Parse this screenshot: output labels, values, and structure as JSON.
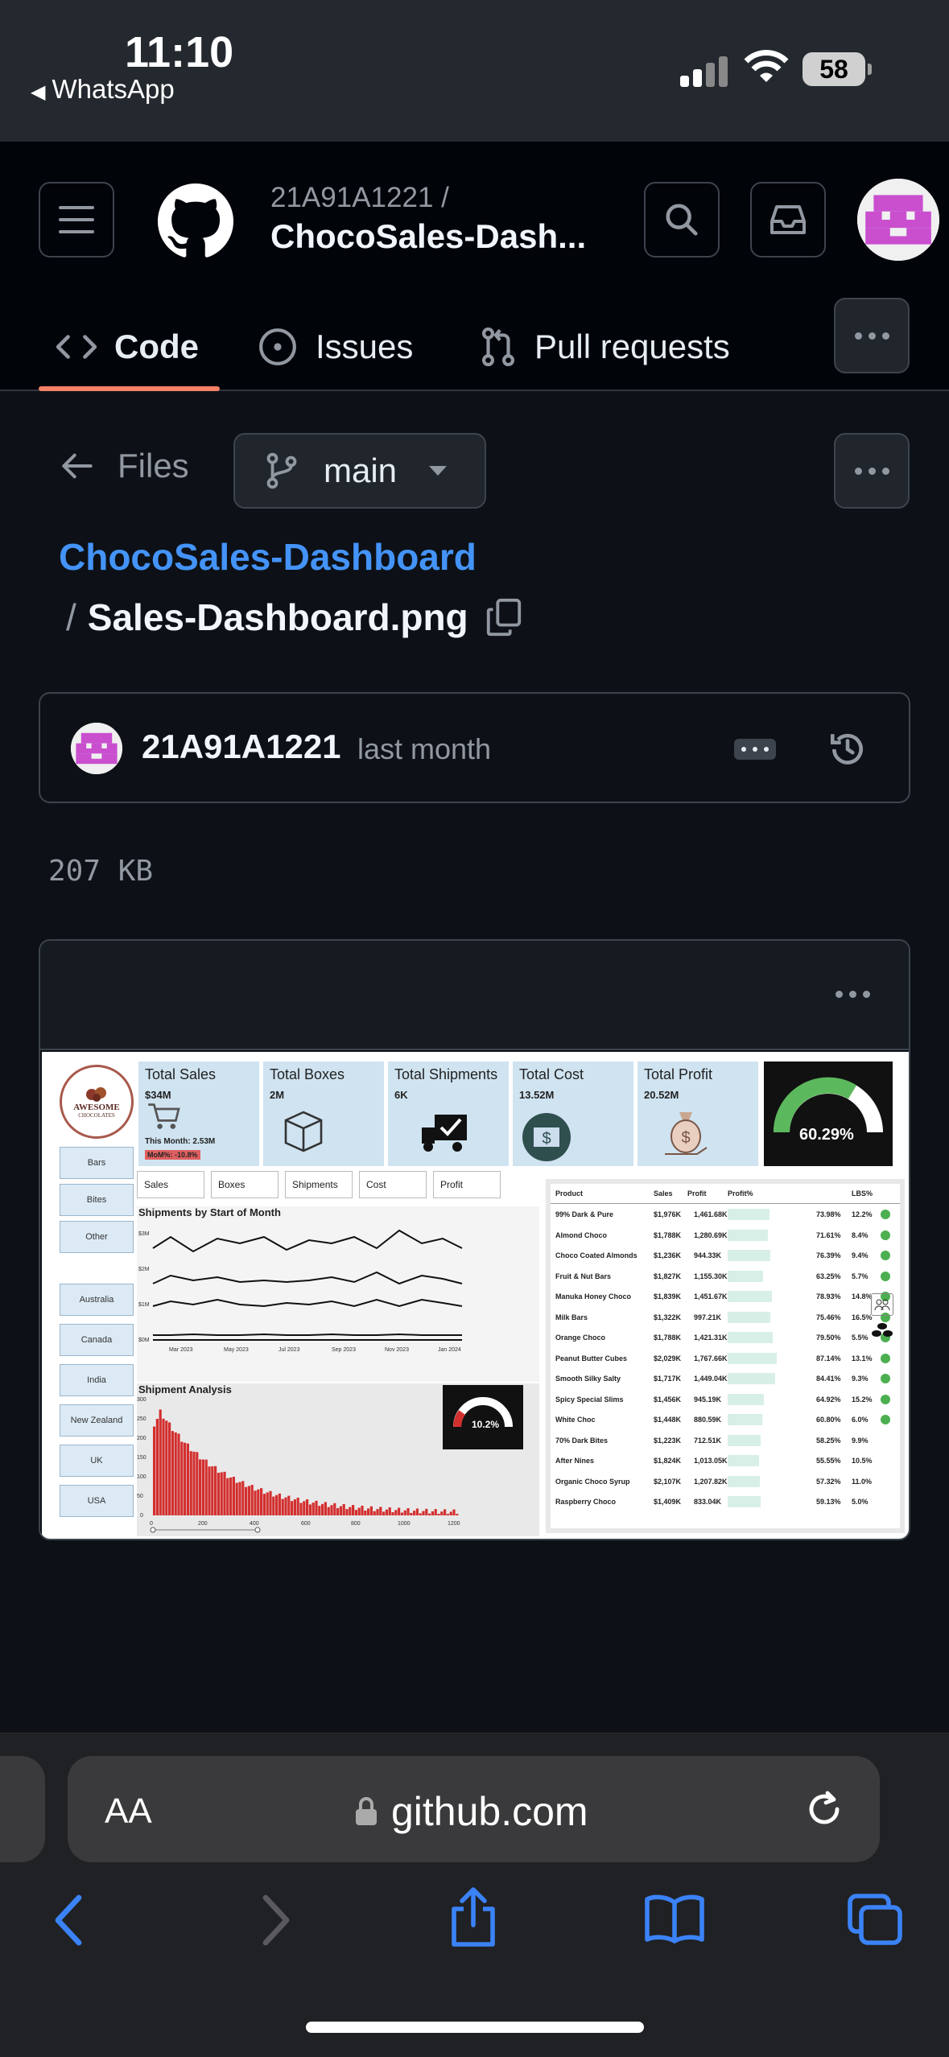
{
  "status": {
    "time": "11:10",
    "back_app": "WhatsApp",
    "battery": "58"
  },
  "header": {
    "owner": "21A91A1221 /",
    "repo": "ChocoSales-Dash..."
  },
  "tabs": [
    {
      "label": "Code",
      "active": true
    },
    {
      "label": "Issues",
      "active": false
    },
    {
      "label": "Pull requests",
      "active": false
    }
  ],
  "toolbar": {
    "files_label": "Files",
    "branch": "main"
  },
  "breadcrumb": {
    "repo": "ChocoSales-Dashboard",
    "separator": "/",
    "file": "Sales-Dashboard.png"
  },
  "commit": {
    "user": "21A91A1221",
    "time": "last month"
  },
  "file_size": "207 KB",
  "dashboard": {
    "logo_line1": "AWESOME",
    "logo_line2": "CHOCOLATES",
    "filters": [
      "Bars",
      "Bites",
      "Other",
      "Australia",
      "Canada",
      "India",
      "New Zealand",
      "UK",
      "USA"
    ],
    "kpis": [
      {
        "label": "Total Sales",
        "value": "$34M",
        "extra1": "This Month: 2.53M",
        "extra2": "MoM%: -10.8%"
      },
      {
        "label": "Total Boxes",
        "value": "2M"
      },
      {
        "label": "Total Shipments",
        "value": "6K"
      },
      {
        "label": "Total Cost",
        "value": "13.52M"
      },
      {
        "label": "Total Profit",
        "value": "20.52M"
      }
    ],
    "gauge_value": "60.29%",
    "chart_tabs": [
      "Sales",
      "Boxes",
      "Shipments",
      "Cost",
      "Profit"
    ],
    "line_chart_title": "Shipments by Start of Month",
    "line_y_ticks": [
      "$3M",
      "$2M",
      "$1M",
      "$0M"
    ],
    "line_x_ticks": [
      "Mar 2023",
      "May 2023",
      "Jul 2023",
      "Sep 2023",
      "Nov 2023",
      "Jan 2024"
    ],
    "bar_chart_title": "Shipment Analysis",
    "bar_y_ticks": [
      "300",
      "250",
      "200",
      "150",
      "100",
      "50",
      "0"
    ],
    "bar_x_ticks": [
      "0",
      "200",
      "400",
      "600",
      "800",
      "1000",
      "1200"
    ],
    "small_gauge_value": "10.2%",
    "table_headers": [
      "Product",
      "Sales",
      "Profit",
      "Profit%",
      "LBS%"
    ],
    "table_rows": [
      {
        "product": "99% Dark & Pure",
        "sales": "$1,976K",
        "profit": "1,461.68K",
        "pct": "73.98%",
        "lbs": "12.2%",
        "check": true
      },
      {
        "product": "Almond Choco",
        "sales": "$1,788K",
        "profit": "1,280.69K",
        "pct": "71.61%",
        "lbs": "8.4%",
        "check": true
      },
      {
        "product": "Choco Coated Almonds",
        "sales": "$1,236K",
        "profit": "944.33K",
        "pct": "76.39%",
        "lbs": "9.4%",
        "check": true
      },
      {
        "product": "Fruit & Nut Bars",
        "sales": "$1,827K",
        "profit": "1,155.30K",
        "pct": "63.25%",
        "lbs": "5.7%",
        "check": true
      },
      {
        "product": "Manuka Honey Choco",
        "sales": "$1,839K",
        "profit": "1,451.67K",
        "pct": "78.93%",
        "lbs": "14.8%",
        "check": true
      },
      {
        "product": "Milk Bars",
        "sales": "$1,322K",
        "profit": "997.21K",
        "pct": "75.46%",
        "lbs": "16.5%",
        "check": true
      },
      {
        "product": "Orange Choco",
        "sales": "$1,788K",
        "profit": "1,421.31K",
        "pct": "79.50%",
        "lbs": "5.5%",
        "check": true
      },
      {
        "product": "Peanut Butter Cubes",
        "sales": "$2,029K",
        "profit": "1,767.66K",
        "pct": "87.14%",
        "lbs": "13.1%",
        "check": true
      },
      {
        "product": "Smooth Silky Salty",
        "sales": "$1,717K",
        "profit": "1,449.04K",
        "pct": "84.41%",
        "lbs": "9.3%",
        "check": true
      },
      {
        "product": "Spicy Special Slims",
        "sales": "$1,456K",
        "profit": "945.19K",
        "pct": "64.92%",
        "lbs": "15.2%",
        "check": true
      },
      {
        "product": "White Choc",
        "sales": "$1,448K",
        "profit": "880.59K",
        "pct": "60.80%",
        "lbs": "6.0%",
        "check": true
      },
      {
        "product": "70% Dark Bites",
        "sales": "$1,223K",
        "profit": "712.51K",
        "pct": "58.25%",
        "lbs": "9.9%",
        "check": false
      },
      {
        "product": "After Nines",
        "sales": "$1,824K",
        "profit": "1,013.05K",
        "pct": "55.55%",
        "lbs": "10.5%",
        "check": false
      },
      {
        "product": "Organic Choco Syrup",
        "sales": "$2,107K",
        "profit": "1,207.82K",
        "pct": "57.32%",
        "lbs": "11.0%",
        "check": false
      },
      {
        "product": "Raspberry Choco",
        "sales": "$1,409K",
        "profit": "833.04K",
        "pct": "59.13%",
        "lbs": "5.0%",
        "check": false
      }
    ]
  },
  "browser": {
    "aa": "AA",
    "url": "github.com"
  },
  "colors": {
    "accent": "#4493f8",
    "tab_underline": "#f78166",
    "bar_red": "#d32f2f",
    "gauge_green": "#5cb85c"
  }
}
